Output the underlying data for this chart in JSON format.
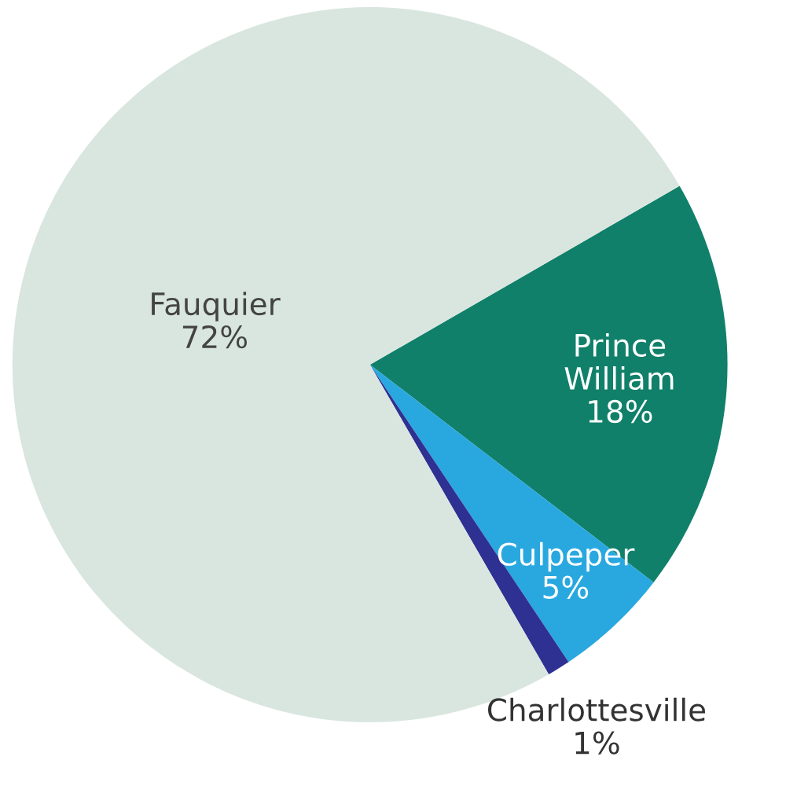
{
  "chart_data": {
    "type": "pie",
    "categories": [
      "Prince William",
      "Culpeper",
      "Charlottesville",
      "Fauquier"
    ],
    "values": [
      18,
      5,
      1,
      72
    ],
    "value_labels": [
      "18%",
      "5%",
      "1%",
      "72%"
    ],
    "colors": [
      "#10806a",
      "#29a8e0",
      "#2e3192",
      "#d9e6e0"
    ]
  }
}
